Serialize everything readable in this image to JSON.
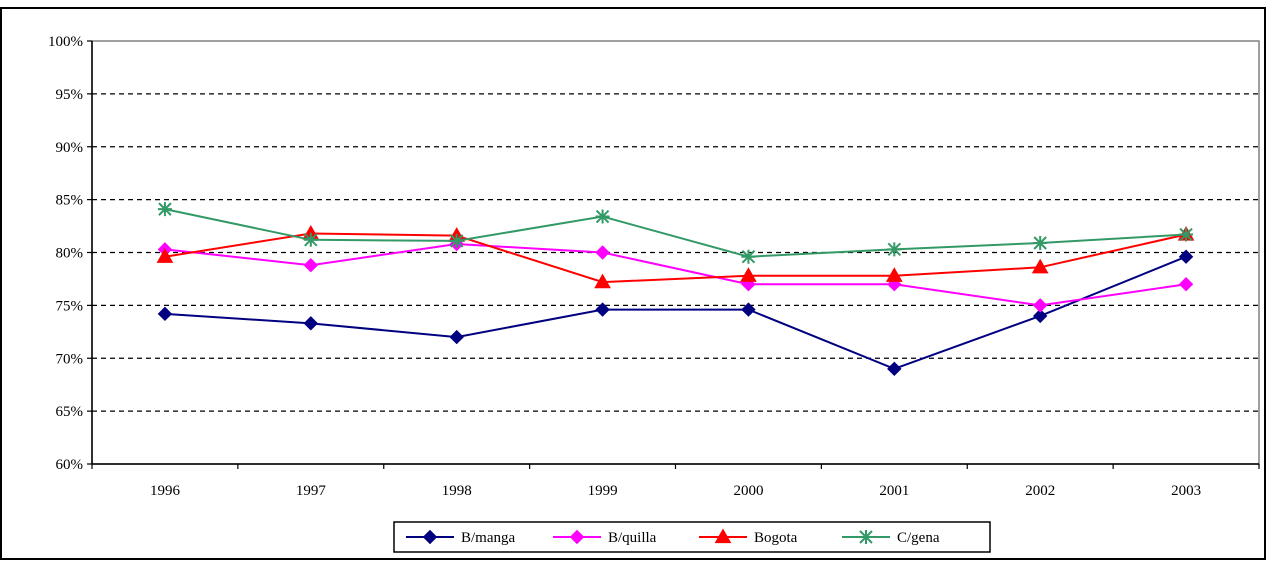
{
  "chart_data": {
    "type": "line",
    "title": "",
    "xlabel": "",
    "ylabel": "",
    "categories": [
      "1996",
      "1997",
      "1998",
      "1999",
      "2000",
      "2001",
      "2002",
      "2003"
    ],
    "y_ticks": [
      "60%",
      "65%",
      "70%",
      "75%",
      "80%",
      "85%",
      "90%",
      "95%",
      "100%"
    ],
    "ylim": [
      60,
      100
    ],
    "grid": "horizontal-dashed",
    "legend_position": "bottom",
    "series": [
      {
        "name": "B/manga",
        "color": "#000080",
        "marker": "diamond",
        "values": [
          74.2,
          73.3,
          72.0,
          74.6,
          74.6,
          69.0,
          74.0,
          79.6
        ]
      },
      {
        "name": "B/quilla",
        "color": "#ff00ff",
        "marker": "diamond",
        "values": [
          80.3,
          78.8,
          80.8,
          80.0,
          77.0,
          77.0,
          75.0,
          77.0
        ]
      },
      {
        "name": "Bogota",
        "color": "#ff0000",
        "marker": "triangle",
        "values": [
          79.6,
          81.8,
          81.6,
          77.2,
          77.8,
          77.8,
          78.6,
          81.7
        ]
      },
      {
        "name": "C/gena",
        "color": "#339966",
        "marker": "star",
        "values": [
          84.1,
          81.2,
          81.1,
          83.4,
          79.6,
          80.3,
          80.9,
          81.7
        ]
      }
    ]
  }
}
